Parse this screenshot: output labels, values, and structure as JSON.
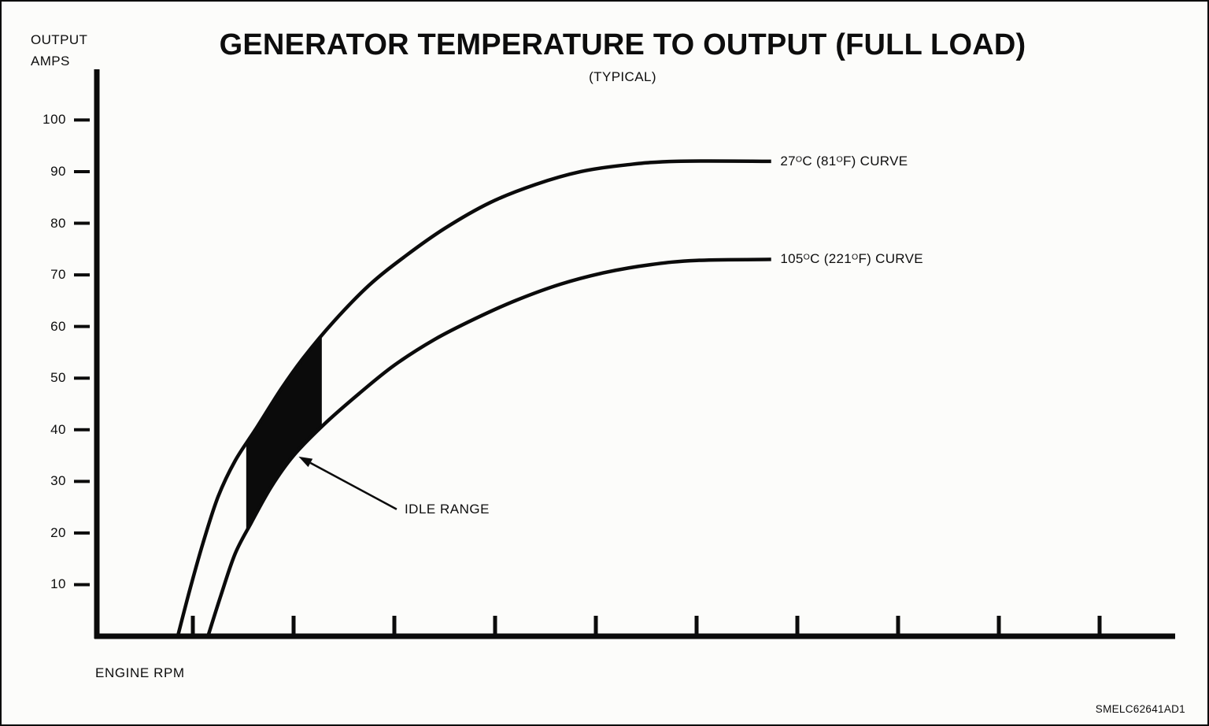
{
  "page": {
    "doc_id": "SMELC62641AD1"
  },
  "chart_data": {
    "type": "line",
    "title": "GENERATOR TEMPERATURE TO OUTPUT (FULL LOAD)",
    "subtitle": "(TYPICAL)",
    "grid": false,
    "legend_position": "inline-right-of-curves",
    "y_axis": {
      "label": "OUTPUT AMPS",
      "label_lines": [
        "OUTPUT",
        "AMPS"
      ],
      "ticks": [
        100,
        90,
        80,
        70,
        60,
        50,
        40,
        30,
        20,
        10
      ],
      "range": [
        0,
        100
      ]
    },
    "x_axis": {
      "label": "ENGINE RPM",
      "tick_count": 10,
      "tick_labels": []
    },
    "series": [
      {
        "name": "27°C (81°F) CURVE",
        "points": [
          [
            0.85,
            0
          ],
          [
            0.97,
            9
          ],
          [
            1.1,
            18
          ],
          [
            1.25,
            27
          ],
          [
            1.42,
            34
          ],
          [
            1.62,
            40
          ],
          [
            1.88,
            48
          ],
          [
            2.1,
            54
          ],
          [
            2.4,
            61
          ],
          [
            2.75,
            68
          ],
          [
            3.1,
            73.5
          ],
          [
            3.5,
            79
          ],
          [
            3.95,
            84
          ],
          [
            4.4,
            87.5
          ],
          [
            4.85,
            90
          ],
          [
            5.3,
            91.3
          ],
          [
            5.8,
            92
          ],
          [
            6.74,
            92
          ]
        ],
        "label_anchor": {
          "x": 6.8,
          "y": 92
        }
      },
      {
        "name": "105°C (221°F) CURVE",
        "points": [
          [
            1.15,
            0
          ],
          [
            1.28,
            8
          ],
          [
            1.42,
            16
          ],
          [
            1.58,
            22
          ],
          [
            1.78,
            29
          ],
          [
            2.0,
            35
          ],
          [
            2.3,
            41
          ],
          [
            2.65,
            47
          ],
          [
            3.0,
            52.5
          ],
          [
            3.4,
            57.5
          ],
          [
            3.8,
            61.5
          ],
          [
            4.2,
            65
          ],
          [
            4.65,
            68.2
          ],
          [
            5.1,
            70.5
          ],
          [
            5.55,
            72
          ],
          [
            6.0,
            72.8
          ],
          [
            6.74,
            73
          ]
        ],
        "label_anchor": {
          "x": 6.8,
          "y": 73
        }
      }
    ],
    "annotation": {
      "label": "IDLE RANGE",
      "region_between_curves": true,
      "region_x_start": 1.53,
      "region_x_end": 2.28,
      "text_x": 3.07,
      "text_y": 24.6,
      "arrow_tip_x": 2.05,
      "arrow_tip_y": 34.8
    }
  }
}
